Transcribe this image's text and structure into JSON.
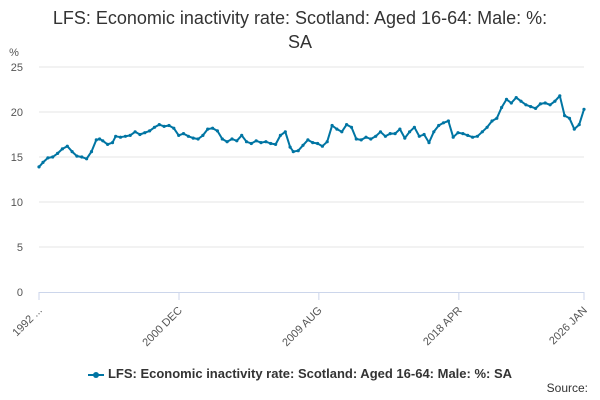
{
  "title": "LFS: Economic inactivity rate: Scotland: Aged 16-64: Male: %: SA",
  "source_label": "Source:",
  "colors": {
    "series": "#0075a3",
    "grid": "#e6e6e6",
    "axis": "#ccd6eb",
    "text": "#555555"
  },
  "chart_data": {
    "type": "line",
    "title": "LFS: Economic inactivity rate: Scotland: Aged 16-64: Male: %: SA",
    "xlabel": "",
    "ylabel": "%",
    "ylim": [
      0,
      25
    ],
    "yticks": [
      0,
      5,
      10,
      15,
      20,
      25
    ],
    "x_range": [
      1992.25,
      2026.0
    ],
    "xticks": [
      {
        "x": 1992.25,
        "label": "1992 ..."
      },
      {
        "x": 2000.92,
        "label": "2000 DEC"
      },
      {
        "x": 2009.58,
        "label": "2009 AUG"
      },
      {
        "x": 2018.25,
        "label": "2018 APR"
      },
      {
        "x": 2026.0,
        "label": "2026 JAN"
      }
    ],
    "legend": "bottom-center",
    "series": [
      {
        "name": "LFS: Economic inactivity rate: Scotland: Aged 16-64: Male: %: SA",
        "x": [
          1992.25,
          1992.5,
          1992.8,
          1993.1,
          1993.4,
          1993.7,
          1994.0,
          1994.3,
          1994.6,
          1994.9,
          1995.2,
          1995.5,
          1995.8,
          1996.0,
          1996.2,
          1996.5,
          1996.8,
          1997.0,
          1997.3,
          1997.6,
          1997.9,
          1998.2,
          1998.5,
          1998.8,
          1999.1,
          1999.4,
          1999.7,
          2000.0,
          2000.3,
          2000.6,
          2000.9,
          2001.2,
          2001.5,
          2001.8,
          2002.1,
          2002.4,
          2002.7,
          2003.0,
          2003.3,
          2003.6,
          2003.9,
          2004.2,
          2004.5,
          2004.8,
          2005.1,
          2005.4,
          2005.7,
          2006.0,
          2006.3,
          2006.6,
          2006.9,
          2007.2,
          2007.5,
          2007.8,
          2008.0,
          2008.3,
          2008.6,
          2008.9,
          2009.2,
          2009.5,
          2009.8,
          2010.1,
          2010.4,
          2010.7,
          2011.0,
          2011.3,
          2011.6,
          2011.9,
          2012.2,
          2012.5,
          2012.8,
          2013.1,
          2013.4,
          2013.7,
          2014.0,
          2014.3,
          2014.6,
          2014.9,
          2015.2,
          2015.5,
          2015.8,
          2016.1,
          2016.4,
          2016.7,
          2017.0,
          2017.3,
          2017.6,
          2017.9,
          2018.2,
          2018.5,
          2018.8,
          2019.1,
          2019.4,
          2019.7,
          2020.0,
          2020.3,
          2020.6,
          2020.9,
          2021.2,
          2021.5,
          2021.8,
          2022.1,
          2022.4,
          2022.7,
          2023.0,
          2023.3,
          2023.6,
          2023.9,
          2024.2,
          2024.5,
          2024.8,
          2025.1,
          2025.4,
          2025.7,
          2026.0
        ],
        "y": [
          13.9,
          14.4,
          14.9,
          15.0,
          15.4,
          15.9,
          16.2,
          15.6,
          15.1,
          15.0,
          14.8,
          15.6,
          16.9,
          17.0,
          16.8,
          16.4,
          16.6,
          17.3,
          17.2,
          17.3,
          17.4,
          17.8,
          17.5,
          17.7,
          17.9,
          18.3,
          18.6,
          18.4,
          18.5,
          18.2,
          17.4,
          17.6,
          17.3,
          17.1,
          17.0,
          17.4,
          18.1,
          18.2,
          17.9,
          17.0,
          16.7,
          17.0,
          16.8,
          17.4,
          16.7,
          16.5,
          16.8,
          16.6,
          16.7,
          16.5,
          16.4,
          17.4,
          17.8,
          16.1,
          15.6,
          15.7,
          16.3,
          16.9,
          16.6,
          16.5,
          16.2,
          16.7,
          18.5,
          18.1,
          17.8,
          18.6,
          18.3,
          17.0,
          16.9,
          17.2,
          17.0,
          17.3,
          17.8,
          17.3,
          17.6,
          17.6,
          18.1,
          17.1,
          17.8,
          18.3,
          17.3,
          17.5,
          16.6,
          17.8,
          18.5,
          18.8,
          19.0,
          17.2,
          17.7,
          17.6,
          17.4,
          17.2,
          17.3,
          17.8,
          18.3,
          19.0,
          19.3,
          20.5,
          21.4,
          21.0,
          21.6,
          21.2,
          20.8,
          20.6,
          20.4,
          20.9,
          21.0,
          20.8,
          21.2,
          21.8,
          19.6,
          19.3,
          18.1,
          18.6,
          20.3
        ]
      }
    ]
  }
}
